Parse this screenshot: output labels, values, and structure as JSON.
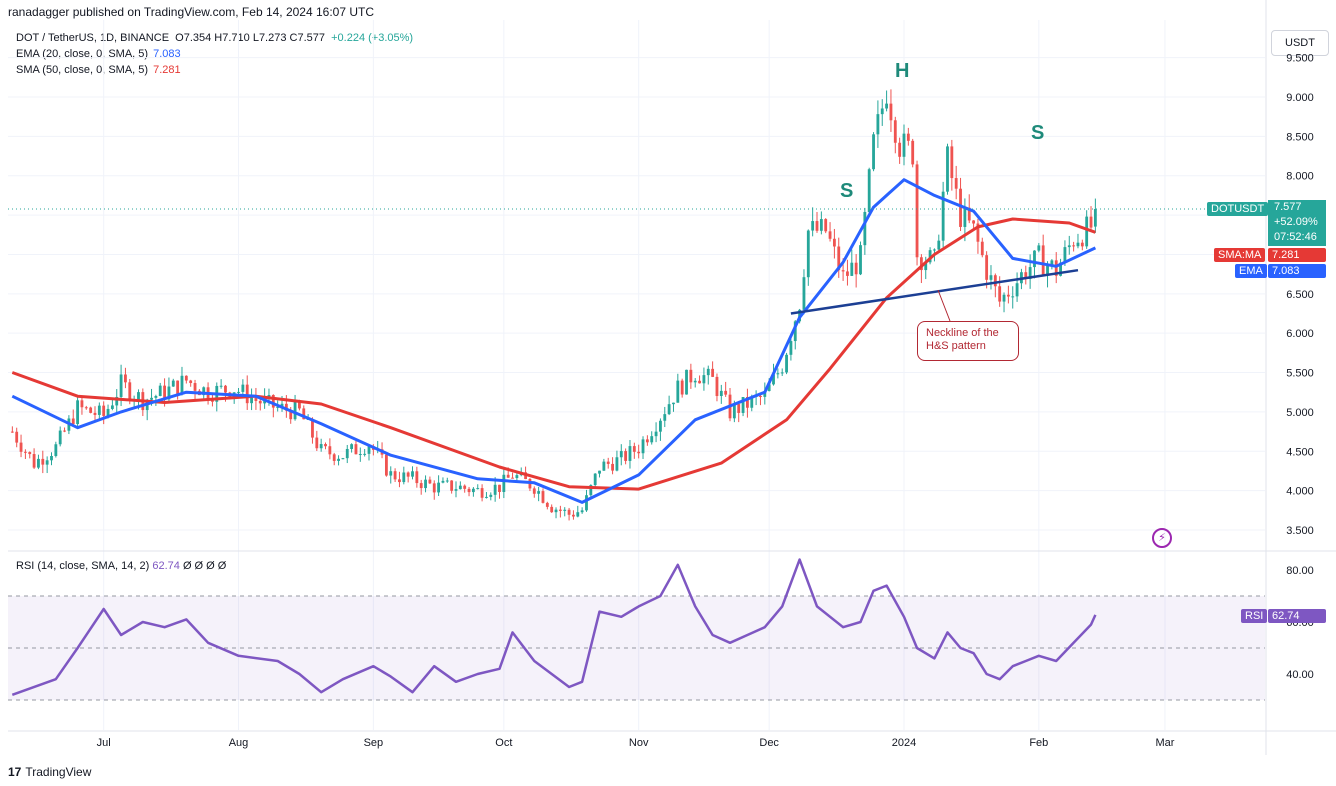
{
  "header": {
    "publisher_note": "ranadagger published on TradingView.com, Feb 14, 2024 16:07 UTC"
  },
  "legend": {
    "symbol": "DOT / TetherUS, 1D, BINANCE",
    "ohlc": "O7.354  H7.710  L7.273  C7.577",
    "change": "+0.224 (+3.05%)",
    "ema_label": "EMA (20, close, 0, SMA, 5)",
    "ema_value": "7.083",
    "sma_label": "SMA (50, close, 0, SMA, 5)",
    "sma_value": "7.281",
    "rsi_label": "RSI (14, close, SMA, 14, 2)",
    "rsi_value": "62.74",
    "rsi_extra": "Ø  Ø  Ø  Ø"
  },
  "currency_button": "USDT",
  "tags": {
    "symbol": "DOTUSDT",
    "price": "7.577",
    "pct": "+52.09%",
    "countdown": "07:52:46",
    "sma_name": "SMA:MA",
    "sma_val": "7.281",
    "ema_name": "EMA",
    "ema_val": "7.083",
    "rsi_name": "RSI",
    "rsi_val": "62.74"
  },
  "annotations": {
    "left_shoulder": "S",
    "head": "H",
    "right_shoulder": "S",
    "callout": "Neckline of the H&S pattern"
  },
  "footer": {
    "brand": "TradingView"
  },
  "colors": {
    "up": "#26a69a",
    "down": "#ef5350",
    "ema": "#2962ff",
    "sma": "#e53935",
    "rsi": "#7e57c2",
    "neckline": "#1c3f94"
  },
  "chart_data": [
    {
      "type": "candlestick",
      "title": "DOT / TetherUS, 1D, BINANCE",
      "y_axis_ticks": [
        "3.500",
        "4.000",
        "4.500",
        "5.000",
        "5.500",
        "6.000",
        "6.500",
        "7.000",
        "7.500",
        "8.000",
        "8.500",
        "9.000",
        "9.500"
      ],
      "x_axis_ticks": [
        "Jul",
        "Aug",
        "Sep",
        "Oct",
        "Nov",
        "Dec",
        "2024",
        "Feb",
        "Mar"
      ],
      "ylim": [
        3.3,
        9.6
      ],
      "last_price": 7.577,
      "price_path": [
        [
          "2023-06-10",
          4.75
        ],
        [
          "2023-06-15",
          4.35
        ],
        [
          "2023-06-20",
          4.55
        ],
        [
          "2023-06-25",
          5.05
        ],
        [
          "2023-07-01",
          4.95
        ],
        [
          "2023-07-05",
          5.35
        ],
        [
          "2023-07-10",
          5.15
        ],
        [
          "2023-07-15",
          5.25
        ],
        [
          "2023-07-20",
          5.4
        ],
        [
          "2023-07-25",
          5.25
        ],
        [
          "2023-07-31",
          5.3
        ],
        [
          "2023-08-05",
          5.15
        ],
        [
          "2023-08-10",
          5.05
        ],
        [
          "2023-08-15",
          5.0
        ],
        [
          "2023-08-20",
          4.5
        ],
        [
          "2023-08-25",
          4.45
        ],
        [
          "2023-08-31",
          4.6
        ],
        [
          "2023-09-05",
          4.2
        ],
        [
          "2023-09-10",
          4.15
        ],
        [
          "2023-09-15",
          4.05
        ],
        [
          "2023-09-20",
          4.05
        ],
        [
          "2023-09-25",
          4.0
        ],
        [
          "2023-09-30",
          4.05
        ],
        [
          "2023-10-03",
          4.2
        ],
        [
          "2023-10-08",
          4.05
        ],
        [
          "2023-10-12",
          3.8
        ],
        [
          "2023-10-16",
          3.7
        ],
        [
          "2023-10-19",
          3.75
        ],
        [
          "2023-10-23",
          4.3
        ],
        [
          "2023-10-28",
          4.4
        ],
        [
          "2023-11-01",
          4.55
        ],
        [
          "2023-11-06",
          4.95
        ],
        [
          "2023-11-10",
          5.3
        ],
        [
          "2023-11-14",
          5.5
        ],
        [
          "2023-11-18",
          5.4
        ],
        [
          "2023-11-22",
          5.0
        ],
        [
          "2023-11-26",
          5.1
        ],
        [
          "2023-11-30",
          5.2
        ],
        [
          "2023-12-04",
          5.6
        ],
        [
          "2023-12-08",
          6.4
        ],
        [
          "2023-12-10",
          7.3
        ],
        [
          "2023-12-14",
          7.3
        ],
        [
          "2023-12-18",
          6.7
        ],
        [
          "2023-12-22",
          6.95
        ],
        [
          "2023-12-25",
          8.4
        ],
        [
          "2023-12-28",
          9.1
        ],
        [
          "2023-12-31",
          8.4
        ],
        [
          "2024-01-03",
          8.3
        ],
        [
          "2024-01-04",
          7.0
        ],
        [
          "2024-01-08",
          6.9
        ],
        [
          "2024-01-11",
          8.2
        ],
        [
          "2024-01-14",
          7.5
        ],
        [
          "2024-01-17",
          7.3
        ],
        [
          "2024-01-20",
          6.8
        ],
        [
          "2024-01-23",
          6.4
        ],
        [
          "2024-01-26",
          6.6
        ],
        [
          "2024-01-29",
          6.8
        ],
        [
          "2024-02-01",
          6.95
        ],
        [
          "2024-02-05",
          6.8
        ],
        [
          "2024-02-09",
          7.2
        ],
        [
          "2024-02-13",
          7.35
        ],
        [
          "2024-02-14",
          7.577
        ]
      ],
      "series": [
        {
          "name": "EMA (20, close, 0, SMA, 5)",
          "last": 7.083,
          "path": [
            [
              "2023-06-10",
              5.2
            ],
            [
              "2023-06-25",
              4.8
            ],
            [
              "2023-07-05",
              5.0
            ],
            [
              "2023-07-20",
              5.25
            ],
            [
              "2023-08-05",
              5.2
            ],
            [
              "2023-08-20",
              4.85
            ],
            [
              "2023-09-05",
              4.45
            ],
            [
              "2023-09-25",
              4.15
            ],
            [
              "2023-10-08",
              4.1
            ],
            [
              "2023-10-19",
              3.85
            ],
            [
              "2023-11-01",
              4.2
            ],
            [
              "2023-11-14",
              4.9
            ],
            [
              "2023-11-30",
              5.25
            ],
            [
              "2023-12-08",
              6.2
            ],
            [
              "2023-12-18",
              6.9
            ],
            [
              "2023-12-25",
              7.6
            ],
            [
              "2024-01-01",
              7.95
            ],
            [
              "2024-01-08",
              7.75
            ],
            [
              "2024-01-17",
              7.55
            ],
            [
              "2024-01-26",
              6.95
            ],
            [
              "2024-02-05",
              6.85
            ],
            [
              "2024-02-14",
              7.083
            ]
          ]
        },
        {
          "name": "SMA (50, close, 0, SMA, 5)",
          "last": 7.281,
          "path": [
            [
              "2023-06-10",
              5.5
            ],
            [
              "2023-06-25",
              5.2
            ],
            [
              "2023-07-15",
              5.12
            ],
            [
              "2023-08-05",
              5.2
            ],
            [
              "2023-08-20",
              5.1
            ],
            [
              "2023-09-05",
              4.8
            ],
            [
              "2023-09-30",
              4.3
            ],
            [
              "2023-10-16",
              4.05
            ],
            [
              "2023-11-01",
              4.02
            ],
            [
              "2023-11-20",
              4.35
            ],
            [
              "2023-12-05",
              4.9
            ],
            [
              "2023-12-15",
              5.55
            ],
            [
              "2023-12-28",
              6.45
            ],
            [
              "2024-01-08",
              7.0
            ],
            [
              "2024-01-18",
              7.35
            ],
            [
              "2024-01-26",
              7.45
            ],
            [
              "2024-02-08",
              7.4
            ],
            [
              "2024-02-14",
              7.281
            ]
          ]
        },
        {
          "name": "Neckline",
          "path": [
            [
              "2023-12-06",
              6.25
            ],
            [
              "2024-02-10",
              6.8
            ]
          ]
        }
      ]
    },
    {
      "type": "line",
      "title": "RSI (14, close, SMA, 14, 2)",
      "y_axis_ticks": [
        "40.00",
        "60.00",
        "80.00"
      ],
      "band": [
        30,
        70
      ],
      "ylim": [
        20,
        85
      ],
      "last": 62.74,
      "series": [
        {
          "name": "RSI",
          "path": [
            [
              "2023-06-10",
              32
            ],
            [
              "2023-06-20",
              38
            ],
            [
              "2023-06-25",
              50
            ],
            [
              "2023-07-01",
              65
            ],
            [
              "2023-07-05",
              55
            ],
            [
              "2023-07-10",
              60
            ],
            [
              "2023-07-15",
              58
            ],
            [
              "2023-07-20",
              61
            ],
            [
              "2023-07-25",
              52
            ],
            [
              "2023-08-01",
              47
            ],
            [
              "2023-08-10",
              45
            ],
            [
              "2023-08-15",
              40
            ],
            [
              "2023-08-20",
              33
            ],
            [
              "2023-08-25",
              38
            ],
            [
              "2023-09-01",
              43
            ],
            [
              "2023-09-05",
              39
            ],
            [
              "2023-09-10",
              33
            ],
            [
              "2023-09-15",
              43
            ],
            [
              "2023-09-20",
              37
            ],
            [
              "2023-09-25",
              40
            ],
            [
              "2023-09-30",
              42
            ],
            [
              "2023-10-03",
              56
            ],
            [
              "2023-10-08",
              45
            ],
            [
              "2023-10-12",
              40
            ],
            [
              "2023-10-16",
              35
            ],
            [
              "2023-10-19",
              37
            ],
            [
              "2023-10-23",
              64
            ],
            [
              "2023-10-28",
              62
            ],
            [
              "2023-11-01",
              66
            ],
            [
              "2023-11-06",
              70
            ],
            [
              "2023-11-10",
              82
            ],
            [
              "2023-11-14",
              66
            ],
            [
              "2023-11-18",
              55
            ],
            [
              "2023-11-22",
              52
            ],
            [
              "2023-11-26",
              55
            ],
            [
              "2023-11-30",
              58
            ],
            [
              "2023-12-04",
              66
            ],
            [
              "2023-12-08",
              84
            ],
            [
              "2023-12-12",
              66
            ],
            [
              "2023-12-18",
              58
            ],
            [
              "2023-12-22",
              60
            ],
            [
              "2023-12-25",
              72
            ],
            [
              "2023-12-28",
              74
            ],
            [
              "2024-01-01",
              62
            ],
            [
              "2024-01-04",
              50
            ],
            [
              "2024-01-08",
              46
            ],
            [
              "2024-01-11",
              56
            ],
            [
              "2024-01-14",
              50
            ],
            [
              "2024-01-17",
              48
            ],
            [
              "2024-01-20",
              40
            ],
            [
              "2024-01-23",
              38
            ],
            [
              "2024-01-26",
              43
            ],
            [
              "2024-01-29",
              45
            ],
            [
              "2024-02-01",
              47
            ],
            [
              "2024-02-05",
              45
            ],
            [
              "2024-02-09",
              52
            ],
            [
              "2024-02-13",
              59
            ],
            [
              "2024-02-14",
              62.74
            ]
          ]
        }
      ]
    }
  ]
}
